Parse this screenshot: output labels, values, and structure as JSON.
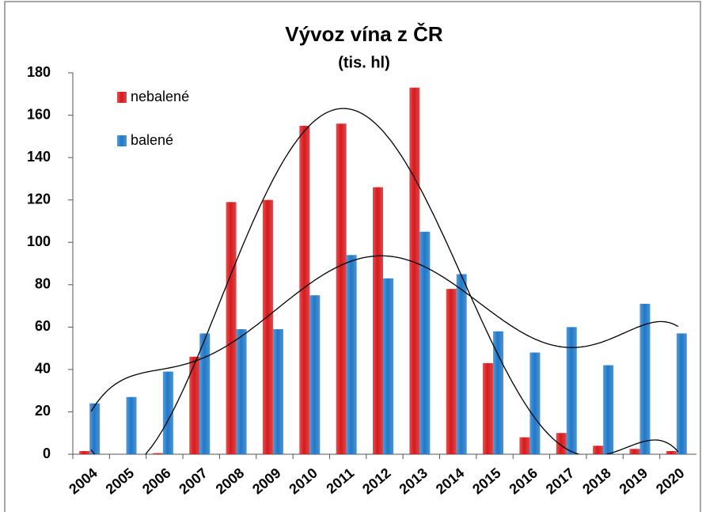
{
  "chart_data": {
    "type": "bar",
    "title": "Vývoz vína z ČR",
    "subtitle": "(tis. hl)",
    "categories": [
      "2004",
      "2005",
      "2006",
      "2007",
      "2008",
      "2009",
      "2010",
      "2011",
      "2012",
      "2013",
      "2014",
      "2015",
      "2016",
      "2017",
      "2018",
      "2019",
      "2020"
    ],
    "series": [
      {
        "name": "nebalené",
        "color": "#d7191c",
        "trendline_order": 6,
        "values": [
          1.5,
          0,
          0.5,
          46,
          119,
          120,
          155,
          156,
          126,
          173,
          78,
          43,
          8,
          10,
          4,
          2.5,
          1.5
        ]
      },
      {
        "name": "balené",
        "color": "#1f78c8",
        "trendline_order": 6,
        "values": [
          24,
          27,
          39,
          57,
          59,
          59,
          75,
          94,
          83,
          105,
          85,
          58,
          48,
          60,
          42,
          71,
          57
        ]
      }
    ],
    "ylim": [
      0,
      180
    ],
    "yticks": [
      0,
      20,
      40,
      60,
      80,
      100,
      120,
      140,
      160,
      180
    ],
    "grid": false,
    "legend": "top-left"
  }
}
